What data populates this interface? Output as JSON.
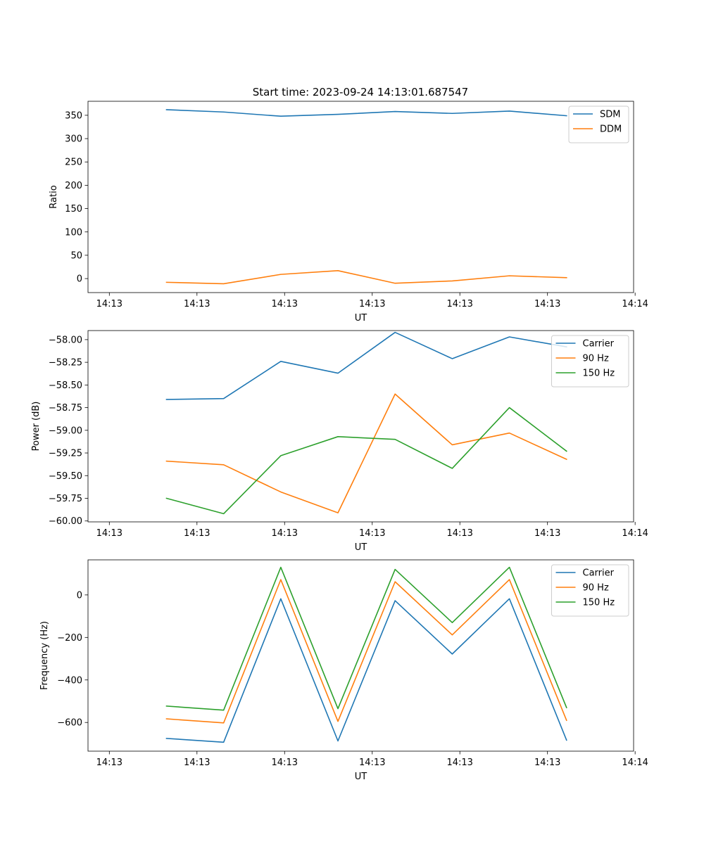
{
  "figure": {
    "title": "Start time: 2023-09-24 14:13:01.687547"
  },
  "colors": {
    "blue": "#1f77b4",
    "orange": "#ff7f0e",
    "green": "#2ca02c"
  },
  "chart_data": [
    {
      "type": "line",
      "xlabel": "UT",
      "ylabel": "Ratio",
      "x": [
        0.75,
        1.5,
        2.25,
        3.0,
        3.75,
        4.5,
        5.25,
        6.0
      ],
      "xlim": [
        -0.28,
        6.88
      ],
      "xticks": [
        0,
        1.15,
        2.3,
        3.45,
        4.6,
        5.75,
        6.9
      ],
      "xtick_labels": [
        "14:13",
        "14:13",
        "14:13",
        "14:13",
        "14:13",
        "14:13",
        "14:14"
      ],
      "ylim": [
        -30,
        380
      ],
      "yticks": [
        0,
        50,
        100,
        150,
        200,
        250,
        300,
        350
      ],
      "ytick_labels": [
        "0",
        "50",
        "100",
        "150",
        "200",
        "250",
        "300",
        "350"
      ],
      "legend": "top-right",
      "series": [
        {
          "name": "SDM",
          "color": "#1f77b4",
          "values": [
            362,
            357,
            348,
            352,
            358,
            354,
            359,
            349
          ]
        },
        {
          "name": "DDM",
          "color": "#ff7f0e",
          "values": [
            -8,
            -11,
            9,
            17,
            -10,
            -5,
            6,
            2
          ]
        }
      ]
    },
    {
      "type": "line",
      "xlabel": "UT",
      "ylabel": "Power (dB)",
      "x": [
        0.75,
        1.5,
        2.25,
        3.0,
        3.75,
        4.5,
        5.25,
        6.0
      ],
      "xlim": [
        -0.28,
        6.88
      ],
      "xticks": [
        0,
        1.15,
        2.3,
        3.45,
        4.6,
        5.75,
        6.9
      ],
      "xtick_labels": [
        "14:13",
        "14:13",
        "14:13",
        "14:13",
        "14:13",
        "14:13",
        "14:14"
      ],
      "ylim": [
        -60.01,
        -57.9
      ],
      "yticks": [
        -60.0,
        -59.75,
        -59.5,
        -59.25,
        -59.0,
        -58.75,
        -58.5,
        -58.25,
        -58.0
      ],
      "ytick_labels": [
        "−60.00",
        "−59.75",
        "−59.50",
        "−59.25",
        "−59.00",
        "−58.75",
        "−58.50",
        "−58.25",
        "−58.00"
      ],
      "legend": "top-right",
      "series": [
        {
          "name": "Carrier",
          "color": "#1f77b4",
          "values": [
            -58.66,
            -58.65,
            -58.24,
            -58.37,
            -57.92,
            -58.21,
            -57.97,
            -58.08
          ]
        },
        {
          "name": "90 Hz",
          "color": "#ff7f0e",
          "values": [
            -59.34,
            -59.38,
            -59.68,
            -59.91,
            -58.6,
            -59.16,
            -59.03,
            -59.32
          ]
        },
        {
          "name": "150 Hz",
          "color": "#2ca02c",
          "values": [
            -59.75,
            -59.92,
            -59.28,
            -59.07,
            -59.1,
            -59.42,
            -58.75,
            -59.23
          ]
        }
      ]
    },
    {
      "type": "line",
      "xlabel": "UT",
      "ylabel": "Frequency (Hz)",
      "x": [
        0.75,
        1.5,
        2.25,
        3.0,
        3.75,
        4.5,
        5.25,
        6.0
      ],
      "xlim": [
        -0.28,
        6.88
      ],
      "xticks": [
        0,
        1.15,
        2.3,
        3.45,
        4.6,
        5.75,
        6.9
      ],
      "xtick_labels": [
        "14:13",
        "14:13",
        "14:13",
        "14:13",
        "14:13",
        "14:13",
        "14:14"
      ],
      "ylim": [
        -735,
        165
      ],
      "yticks": [
        -600,
        -400,
        -200,
        0
      ],
      "ytick_labels": [
        "−600",
        "−400",
        "−200",
        "0"
      ],
      "legend": "top-right",
      "series": [
        {
          "name": "Carrier",
          "color": "#1f77b4",
          "values": [
            -675,
            -693,
            -18,
            -687,
            -27,
            -278,
            -18,
            -683
          ]
        },
        {
          "name": "90 Hz",
          "color": "#ff7f0e",
          "values": [
            -583,
            -602,
            72,
            -595,
            62,
            -188,
            72,
            -590
          ]
        },
        {
          "name": "150 Hz",
          "color": "#2ca02c",
          "values": [
            -523,
            -542,
            130,
            -535,
            120,
            -130,
            130,
            -530
          ]
        }
      ]
    }
  ]
}
